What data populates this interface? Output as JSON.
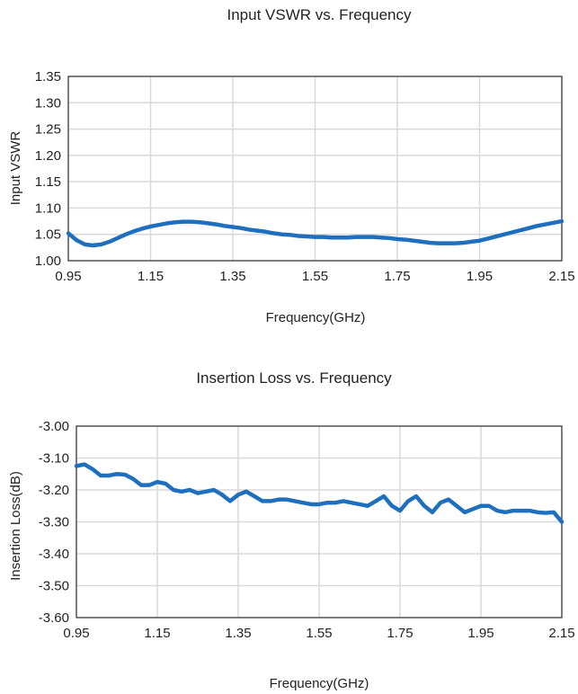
{
  "chart_data": [
    {
      "type": "line",
      "title": "Input VSWR vs. Frequency",
      "xlabel": "Frequency(GHz)",
      "ylabel": "Input VSWR",
      "xlim": [
        0.95,
        2.15
      ],
      "ylim": [
        1.0,
        1.35
      ],
      "xticks": [
        0.95,
        1.15,
        1.35,
        1.55,
        1.75,
        1.95,
        2.15
      ],
      "xtick_labels": [
        "0.95",
        "1.15",
        "1.35",
        "1.55",
        "1.75",
        "1.95",
        "2.15"
      ],
      "yticks": [
        1.0,
        1.05,
        1.1,
        1.15,
        1.2,
        1.25,
        1.3,
        1.35
      ],
      "ytick_labels": [
        "1.00",
        "1.05",
        "1.10",
        "1.15",
        "1.20",
        "1.25",
        "1.30",
        "1.35"
      ],
      "grid": true,
      "series_color": "#1f6fbf",
      "series": [
        {
          "x": [
            0.95,
            0.97,
            0.99,
            1.01,
            1.03,
            1.05,
            1.07,
            1.09,
            1.11,
            1.13,
            1.15,
            1.17,
            1.19,
            1.21,
            1.23,
            1.25,
            1.27,
            1.29,
            1.31,
            1.33,
            1.35,
            1.37,
            1.39,
            1.41,
            1.43,
            1.45,
            1.47,
            1.49,
            1.51,
            1.53,
            1.55,
            1.57,
            1.59,
            1.61,
            1.63,
            1.65,
            1.67,
            1.69,
            1.71,
            1.73,
            1.75,
            1.77,
            1.79,
            1.81,
            1.83,
            1.85,
            1.87,
            1.89,
            1.91,
            1.93,
            1.95,
            1.97,
            1.99,
            2.01,
            2.03,
            2.05,
            2.07,
            2.09,
            2.11,
            2.13,
            2.15
          ],
          "y": [
            1.052,
            1.039,
            1.031,
            1.029,
            1.031,
            1.036,
            1.043,
            1.05,
            1.056,
            1.061,
            1.065,
            1.068,
            1.071,
            1.073,
            1.074,
            1.074,
            1.073,
            1.071,
            1.069,
            1.066,
            1.064,
            1.062,
            1.059,
            1.057,
            1.055,
            1.052,
            1.05,
            1.049,
            1.047,
            1.046,
            1.045,
            1.045,
            1.044,
            1.044,
            1.044,
            1.045,
            1.045,
            1.045,
            1.044,
            1.043,
            1.041,
            1.04,
            1.038,
            1.036,
            1.034,
            1.033,
            1.033,
            1.033,
            1.034,
            1.036,
            1.038,
            1.042,
            1.046,
            1.05,
            1.054,
            1.058,
            1.062,
            1.066,
            1.069,
            1.072,
            1.075
          ]
        }
      ]
    },
    {
      "type": "line",
      "title": "Insertion Loss vs. Frequency",
      "xlabel": "Frequency(GHz)",
      "ylabel": "Insertion Loss(dB)",
      "xlim": [
        0.95,
        2.15
      ],
      "ylim": [
        -3.6,
        -3.0
      ],
      "xticks": [
        0.95,
        1.15,
        1.35,
        1.55,
        1.75,
        1.95,
        2.15
      ],
      "xtick_labels": [
        "0.95",
        "1.15",
        "1.35",
        "1.55",
        "1.75",
        "1.95",
        "2.15"
      ],
      "yticks": [
        -3.0,
        -3.1,
        -3.2,
        -3.3,
        -3.4,
        -3.5,
        -3.6
      ],
      "ytick_labels": [
        "-3.00",
        "-3.10",
        "-3.20",
        "-3.30",
        "-3.40",
        "-3.50",
        "-3.60"
      ],
      "grid": true,
      "series_color": "#1f6fbf",
      "series": [
        {
          "x": [
            0.95,
            0.97,
            0.99,
            1.01,
            1.03,
            1.05,
            1.07,
            1.09,
            1.11,
            1.13,
            1.15,
            1.17,
            1.19,
            1.21,
            1.23,
            1.25,
            1.27,
            1.29,
            1.31,
            1.33,
            1.35,
            1.37,
            1.39,
            1.41,
            1.43,
            1.45,
            1.47,
            1.49,
            1.51,
            1.53,
            1.55,
            1.57,
            1.59,
            1.61,
            1.63,
            1.65,
            1.67,
            1.69,
            1.71,
            1.73,
            1.75,
            1.77,
            1.79,
            1.81,
            1.83,
            1.85,
            1.87,
            1.89,
            1.91,
            1.93,
            1.95,
            1.97,
            1.99,
            2.01,
            2.03,
            2.05,
            2.07,
            2.09,
            2.11,
            2.13,
            2.15
          ],
          "y": [
            -3.125,
            -3.12,
            -3.135,
            -3.155,
            -3.155,
            -3.15,
            -3.152,
            -3.165,
            -3.185,
            -3.185,
            -3.175,
            -3.18,
            -3.2,
            -3.205,
            -3.2,
            -3.21,
            -3.205,
            -3.2,
            -3.215,
            -3.235,
            -3.215,
            -3.205,
            -3.22,
            -3.235,
            -3.235,
            -3.23,
            -3.23,
            -3.235,
            -3.24,
            -3.245,
            -3.245,
            -3.24,
            -3.24,
            -3.235,
            -3.24,
            -3.245,
            -3.25,
            -3.235,
            -3.22,
            -3.25,
            -3.265,
            -3.235,
            -3.22,
            -3.25,
            -3.27,
            -3.24,
            -3.23,
            -3.25,
            -3.27,
            -3.26,
            -3.25,
            -3.25,
            -3.265,
            -3.27,
            -3.265,
            -3.265,
            -3.265,
            -3.27,
            -3.272,
            -3.27,
            -3.3
          ]
        }
      ]
    }
  ]
}
